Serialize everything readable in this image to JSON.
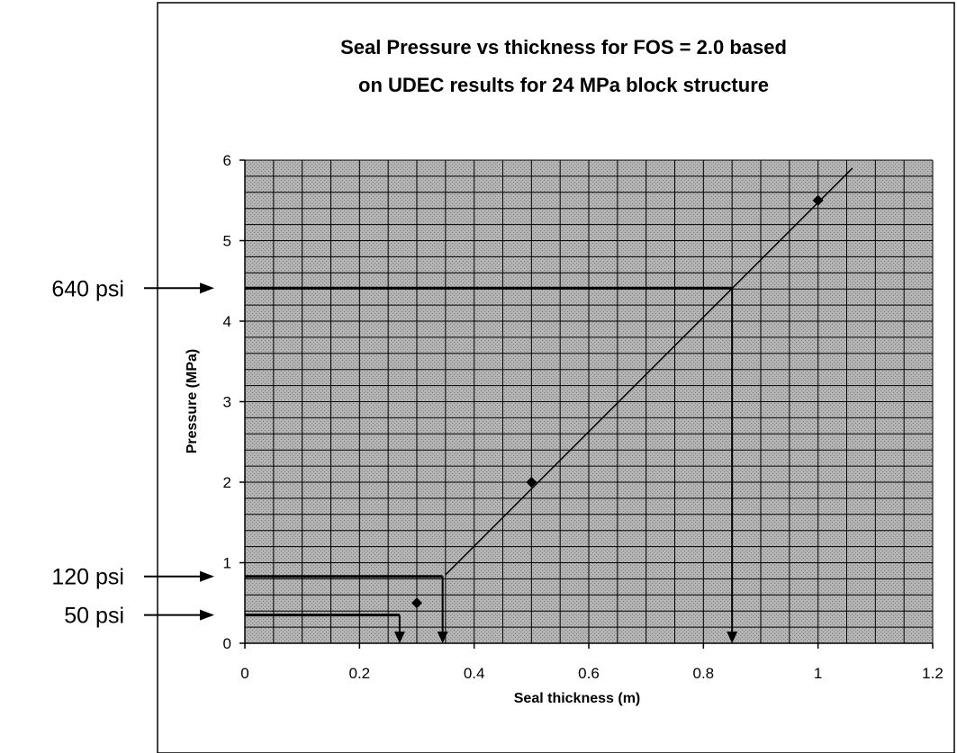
{
  "chart_data": {
    "type": "scatter",
    "title_lines": [
      "Seal Pressure vs thickness for FOS = 2.0 based",
      "on UDEC results for 24 MPa block structure"
    ],
    "xlabel": "Seal thickness (m)",
    "ylabel": "Pressure (MPa)",
    "xlim": [
      0,
      1.2
    ],
    "ylim": [
      0,
      6
    ],
    "x_ticks": [
      "0",
      "0.2",
      "0.4",
      "0.6",
      "0.8",
      "1",
      "1.2"
    ],
    "y_ticks": [
      "0",
      "1",
      "2",
      "3",
      "4",
      "5",
      "6"
    ],
    "grid": true,
    "background": "gray hatched",
    "series": [
      {
        "marker": "diamond",
        "x": [
          0.3,
          0.5,
          1.0
        ],
        "y": [
          0.5,
          2.0,
          5.5
        ]
      }
    ],
    "trendline": {
      "x": [
        0.35,
        1.06
      ],
      "y": [
        0.85,
        5.9
      ]
    },
    "callouts": [
      {
        "label": "640 psi",
        "pressure": 4.41,
        "thickness": 0.85
      },
      {
        "label": "120 psi",
        "pressure": 0.83,
        "thickness": 0.345
      },
      {
        "label": "50 psi",
        "pressure": 0.35,
        "thickness": 0.27
      }
    ],
    "colors": {
      "plot_bg": "#a9a9a9",
      "grid": "#000000",
      "line": "#000000"
    }
  }
}
